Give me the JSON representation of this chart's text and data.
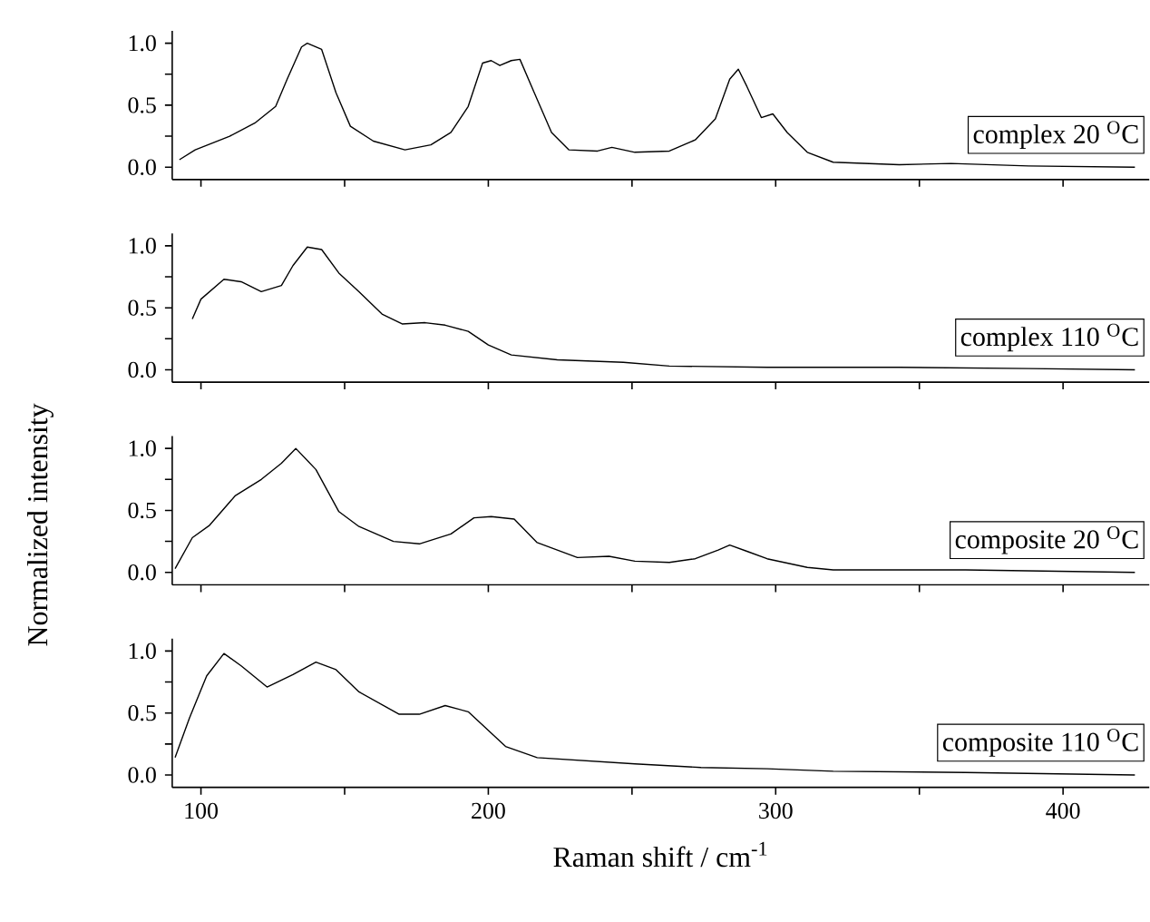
{
  "chart_data": [
    {
      "type": "line",
      "annotations": [
        "complex 20 $^{O}$C"
      ],
      "color": "#000000",
      "xlim": [
        90,
        430
      ],
      "ylim": [
        -0.1,
        1.1
      ],
      "tick_labels": "y",
      "xticks": [
        100,
        {
          "value": 150,
          "label": null
        },
        200,
        {
          "value": 250,
          "label": null
        },
        300,
        {
          "value": 350,
          "label": null
        },
        400
      ],
      "yticks": [
        {
          "value": 0,
          "label": "0.0"
        },
        {
          "value": 0.25,
          "label": null
        },
        {
          "value": 0.5,
          "label": "0.5"
        },
        {
          "value": 0.75,
          "label": null
        },
        {
          "value": 1,
          "label": "1.0"
        }
      ],
      "x": [
        92.5,
        98,
        110,
        119,
        126,
        130,
        135,
        137,
        142,
        147,
        152,
        160,
        171,
        180,
        187,
        193,
        198,
        201,
        204,
        208,
        211,
        216,
        222,
        228,
        238,
        243,
        251,
        263,
        272,
        279,
        284,
        287,
        290,
        295,
        299,
        304,
        311,
        320,
        343,
        361,
        388,
        425
      ],
      "values": [
        0.06,
        0.14,
        0.25,
        0.36,
        0.49,
        0.71,
        0.97,
        1.0,
        0.95,
        0.6,
        0.33,
        0.21,
        0.14,
        0.18,
        0.28,
        0.49,
        0.84,
        0.86,
        0.82,
        0.86,
        0.87,
        0.6,
        0.28,
        0.14,
        0.13,
        0.16,
        0.12,
        0.13,
        0.22,
        0.39,
        0.71,
        0.79,
        0.65,
        0.4,
        0.43,
        0.28,
        0.12,
        0.04,
        0.02,
        0.03,
        0.01,
        0.0
      ]
    },
    {
      "type": "line",
      "annotations": [
        "complex 110 $^{O}$C"
      ],
      "ylabel": "Normalized intensity",
      "color": "#000000",
      "xlim": [
        90,
        430
      ],
      "ylim": [
        -0.1,
        1.1
      ],
      "tick_labels": "y",
      "xticks": [
        100,
        {
          "value": 150,
          "label": null
        },
        200,
        {
          "value": 250,
          "label": null
        },
        300,
        {
          "value": 350,
          "label": null
        },
        400
      ],
      "yticks": [
        {
          "value": 0,
          "label": "0.0"
        },
        {
          "value": 0.25,
          "label": null
        },
        {
          "value": 0.5,
          "label": "0.5"
        },
        {
          "value": 0.75,
          "label": null
        },
        {
          "value": 1,
          "label": "1.0"
        }
      ],
      "x": [
        97,
        100,
        108,
        114,
        121,
        128,
        132,
        137,
        142,
        148,
        155,
        163,
        170,
        178,
        185,
        193,
        200,
        208,
        224,
        247,
        263,
        297,
        343,
        388,
        425
      ],
      "values": [
        0.41,
        0.57,
        0.73,
        0.71,
        0.63,
        0.68,
        0.84,
        0.99,
        0.97,
        0.78,
        0.63,
        0.45,
        0.37,
        0.38,
        0.36,
        0.31,
        0.2,
        0.12,
        0.08,
        0.06,
        0.03,
        0.02,
        0.02,
        0.01,
        0.0
      ]
    },
    {
      "type": "line",
      "annotations": [
        "composite 20 $^{O}$C"
      ],
      "color": "#000000",
      "xlim": [
        90,
        430
      ],
      "ylim": [
        -0.1,
        1.1
      ],
      "tick_labels": "y",
      "xticks": [
        100,
        {
          "value": 150,
          "label": null
        },
        200,
        {
          "value": 250,
          "label": null
        },
        300,
        {
          "value": 350,
          "label": null
        },
        400
      ],
      "yticks": [
        {
          "value": 0,
          "label": "0.0"
        },
        {
          "value": 0.25,
          "label": null
        },
        {
          "value": 0.5,
          "label": "0.5"
        },
        {
          "value": 0.75,
          "label": null
        },
        {
          "value": 1,
          "label": "1.0"
        }
      ],
      "x": [
        91,
        97,
        103,
        112,
        121,
        128,
        133,
        140,
        148,
        155,
        167,
        176,
        187,
        195,
        201,
        209,
        217,
        231,
        242,
        251,
        263,
        272,
        280,
        284,
        290,
        297,
        311,
        320,
        366,
        425
      ],
      "values": [
        0.03,
        0.28,
        0.38,
        0.62,
        0.75,
        0.88,
        1.0,
        0.83,
        0.49,
        0.37,
        0.25,
        0.23,
        0.31,
        0.44,
        0.45,
        0.43,
        0.24,
        0.12,
        0.13,
        0.09,
        0.08,
        0.11,
        0.18,
        0.22,
        0.17,
        0.11,
        0.04,
        0.02,
        0.02,
        0.0
      ]
    },
    {
      "type": "line",
      "annotations": [
        "composite 110 $^{O}$C"
      ],
      "xlabel": "Raman shift / cm$^{-1}$",
      "color": "#000000",
      "xlim": [
        90,
        430
      ],
      "ylim": [
        -0.1,
        1.1
      ],
      "xticks": [
        100,
        {
          "value": 150,
          "label": null
        },
        200,
        {
          "value": 250,
          "label": null
        },
        300,
        {
          "value": 350,
          "label": null
        },
        400
      ],
      "yticks": [
        {
          "value": 0,
          "label": "0.0"
        },
        {
          "value": 0.25,
          "label": null
        },
        {
          "value": 0.5,
          "label": "0.5"
        },
        {
          "value": 0.75,
          "label": null
        },
        {
          "value": 1,
          "label": "1.0"
        }
      ],
      "x": [
        91,
        96,
        102,
        108,
        114,
        123,
        132,
        140,
        147,
        155,
        169,
        176,
        185,
        193,
        206,
        217,
        251,
        274,
        297,
        320,
        366,
        425
      ],
      "values": [
        0.14,
        0.46,
        0.8,
        0.98,
        0.88,
        0.71,
        0.81,
        0.91,
        0.85,
        0.67,
        0.49,
        0.49,
        0.56,
        0.51,
        0.23,
        0.14,
        0.09,
        0.06,
        0.05,
        0.03,
        0.02,
        0.0
      ]
    }
  ]
}
